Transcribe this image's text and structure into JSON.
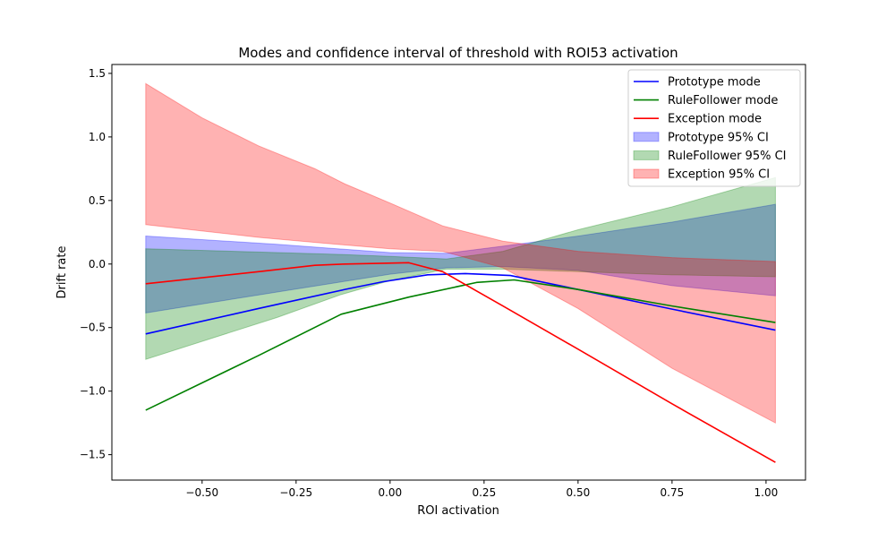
{
  "chart_data": {
    "type": "line",
    "title": "Modes and confidence interval of threshold with ROI53 activation",
    "xlabel": "ROI activation",
    "ylabel": "Drift rate",
    "xlim": [
      -0.74,
      1.105
    ],
    "ylim": [
      -1.7,
      1.57
    ],
    "x_ticks": [
      -0.5,
      -0.25,
      0.0,
      0.25,
      0.5,
      0.75,
      1.0
    ],
    "x_tick_labels": [
      "−0.50",
      "−0.25",
      "0.00",
      "0.25",
      "0.50",
      "0.75",
      "1.00"
    ],
    "y_ticks": [
      -1.5,
      -1.0,
      -0.5,
      0.0,
      0.5,
      1.0,
      1.5
    ],
    "y_tick_labels": [
      "−1.5",
      "−1.0",
      "−0.5",
      "0.0",
      "0.5",
      "1.0",
      "1.5"
    ],
    "grid": false,
    "legend_position": "top-right",
    "series": [
      {
        "name": "Prototype mode",
        "color": "#0000ff",
        "x": [
          -0.65,
          -0.35,
          -0.12,
          -0.02,
          0.1,
          0.2,
          0.32,
          0.5,
          0.75,
          1.025
        ],
        "values": [
          -0.55,
          -0.35,
          -0.2,
          -0.14,
          -0.085,
          -0.075,
          -0.09,
          -0.2,
          -0.355,
          -0.52
        ]
      },
      {
        "name": "RuleFollower mode",
        "color": "#008000",
        "x": [
          -0.65,
          -0.35,
          -0.13,
          0.05,
          0.23,
          0.33,
          0.5,
          0.75,
          1.025
        ],
        "values": [
          -1.15,
          -0.72,
          -0.395,
          -0.26,
          -0.145,
          -0.125,
          -0.2,
          -0.33,
          -0.46
        ]
      },
      {
        "name": "Exception mode",
        "color": "#ff0000",
        "x": [
          -0.65,
          -0.35,
          -0.2,
          -0.12,
          0.05,
          0.14,
          0.3,
          0.5,
          0.75,
          1.025
        ],
        "values": [
          -0.155,
          -0.06,
          -0.01,
          0.0,
          0.01,
          -0.06,
          -0.33,
          -0.67,
          -1.1,
          -1.56
        ]
      }
    ],
    "bands": [
      {
        "name": "Prototype 95% CI",
        "color": "#0000ff",
        "x": [
          -0.65,
          -0.3,
          0.0,
          0.15,
          0.3,
          0.5,
          0.75,
          1.025
        ],
        "upper": [
          0.22,
          0.155,
          0.09,
          0.085,
          0.14,
          0.22,
          0.33,
          0.47
        ],
        "lower": [
          -0.385,
          -0.22,
          -0.08,
          -0.03,
          -0.02,
          -0.05,
          -0.17,
          -0.25
        ]
      },
      {
        "name": "RuleFollower 95% CI",
        "color": "#008000",
        "x": [
          -0.65,
          -0.3,
          -0.13,
          0.0,
          0.15,
          0.3,
          0.5,
          0.75,
          1.025
        ],
        "upper": [
          0.12,
          0.09,
          0.075,
          0.06,
          0.04,
          0.1,
          0.27,
          0.45,
          0.68
        ],
        "lower": [
          -0.75,
          -0.42,
          -0.24,
          -0.13,
          -0.04,
          -0.04,
          -0.06,
          -0.085,
          -0.1
        ]
      },
      {
        "name": "Exception 95% CI",
        "color": "#ff0000",
        "x": [
          -0.65,
          -0.5,
          -0.35,
          -0.2,
          -0.12,
          0.0,
          0.14,
          0.3,
          0.5,
          0.75,
          1.025
        ],
        "upper": [
          1.42,
          1.15,
          0.93,
          0.75,
          0.63,
          0.48,
          0.3,
          0.18,
          0.1,
          0.05,
          0.02
        ],
        "lower": [
          0.31,
          0.26,
          0.21,
          0.17,
          0.15,
          0.12,
          0.1,
          -0.03,
          -0.35,
          -0.82,
          -1.25
        ]
      }
    ]
  }
}
